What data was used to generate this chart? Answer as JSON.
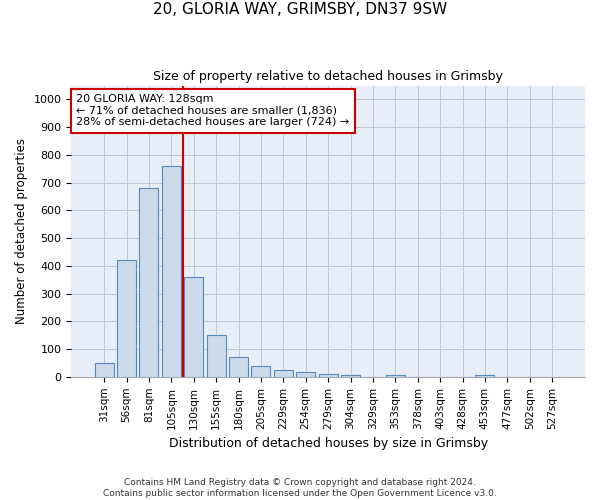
{
  "title_line1": "20, GLORIA WAY, GRIMSBY, DN37 9SW",
  "title_line2": "Size of property relative to detached houses in Grimsby",
  "xlabel": "Distribution of detached houses by size in Grimsby",
  "ylabel": "Number of detached properties",
  "footnote1": "Contains HM Land Registry data © Crown copyright and database right 2024.",
  "footnote2": "Contains public sector information licensed under the Open Government Licence v3.0.",
  "bar_labels": [
    "31sqm",
    "56sqm",
    "81sqm",
    "105sqm",
    "130sqm",
    "155sqm",
    "180sqm",
    "205sqm",
    "229sqm",
    "254sqm",
    "279sqm",
    "304sqm",
    "329sqm",
    "353sqm",
    "378sqm",
    "403sqm",
    "428sqm",
    "453sqm",
    "477sqm",
    "502sqm",
    "527sqm"
  ],
  "bar_values": [
    50,
    420,
    680,
    760,
    360,
    150,
    73,
    38,
    24,
    18,
    10,
    8,
    0,
    5,
    0,
    0,
    0,
    8,
    0,
    0,
    0
  ],
  "bar_color": "#ccdaeb",
  "bar_edge_color": "#5588bb",
  "vline_after_bar": 3,
  "vline_color": "#cc0000",
  "annotation_line1": "20 GLORIA WAY: 128sqm",
  "annotation_line2": "← 71% of detached houses are smaller (1,836)",
  "annotation_line3": "28% of semi-detached houses are larger (724) →",
  "annotation_box_color": "#ffffff",
  "annotation_box_edge": "#cc0000",
  "ylim": [
    0,
    1050
  ],
  "yticks": [
    0,
    100,
    200,
    300,
    400,
    500,
    600,
    700,
    800,
    900,
    1000
  ],
  "background_color": "#e8eef8",
  "grid_color": "#b8c8dc",
  "fig_width": 6.0,
  "fig_height": 5.0,
  "dpi": 100
}
